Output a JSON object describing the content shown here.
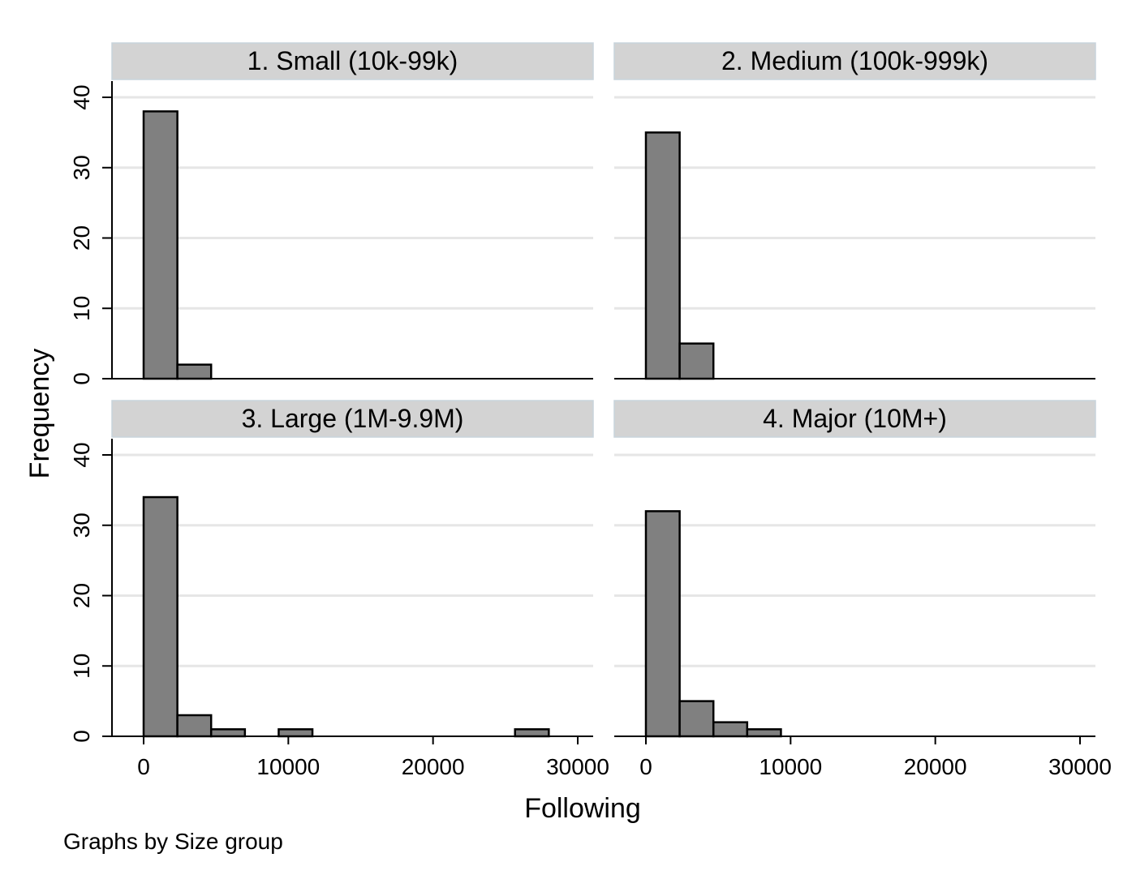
{
  "chart_data": {
    "type": "bar",
    "subtype": "histogram-by-group",
    "xlabel": "Following",
    "ylabel": "Frequency",
    "note": "Graphs by Size group",
    "xlim": [
      0,
      30000
    ],
    "ylim": [
      0,
      40
    ],
    "xticks": [
      0,
      10000,
      20000,
      30000
    ],
    "yticks": [
      0,
      10,
      20,
      30,
      40
    ],
    "bin_width": 2333,
    "grid": true,
    "colors": {
      "bar_fill": "#808080",
      "bar_stroke": "#000000",
      "strip": "#d3d3d3",
      "grid": "#e6e6e6"
    },
    "panels": [
      {
        "title": "1. Small (10k-99k)",
        "bins": [
          {
            "start": 0,
            "count": 38
          },
          {
            "start": 2333,
            "count": 2
          }
        ]
      },
      {
        "title": "2. Medium (100k-999k)",
        "bins": [
          {
            "start": 0,
            "count": 35
          },
          {
            "start": 2333,
            "count": 5
          }
        ]
      },
      {
        "title": "3. Large (1M-9.9M)",
        "bins": [
          {
            "start": 0,
            "count": 34
          },
          {
            "start": 2333,
            "count": 3
          },
          {
            "start": 4667,
            "count": 1
          },
          {
            "start": 9333,
            "count": 1
          },
          {
            "start": 25667,
            "count": 1
          }
        ]
      },
      {
        "title": "4. Major (10M+)",
        "bins": [
          {
            "start": 0,
            "count": 32
          },
          {
            "start": 2333,
            "count": 5
          },
          {
            "start": 4667,
            "count": 2
          },
          {
            "start": 7000,
            "count": 1
          }
        ]
      }
    ]
  }
}
